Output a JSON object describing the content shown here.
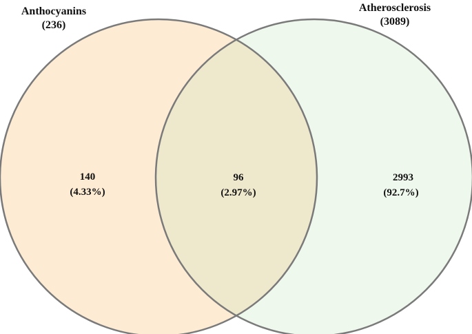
{
  "sets": [
    {
      "id": "left",
      "name": "Anthocyanins",
      "count_label": "(236)",
      "fill": "#FDEBD3",
      "stroke": "#7A7A7A"
    },
    {
      "id": "right",
      "name": "Atherosclerosis",
      "count_label": "(3089)",
      "fill": "#EEF8EC",
      "stroke": "#7A7A7A"
    }
  ],
  "intersection": {
    "fill": "#EEE8CC"
  },
  "regions": {
    "left_only": {
      "count": "140",
      "percent": "(4.33%)"
    },
    "both": {
      "count": "96",
      "percent": "(2.97%)"
    },
    "right_only": {
      "count": "2993",
      "percent": "(92.7%)"
    }
  }
}
